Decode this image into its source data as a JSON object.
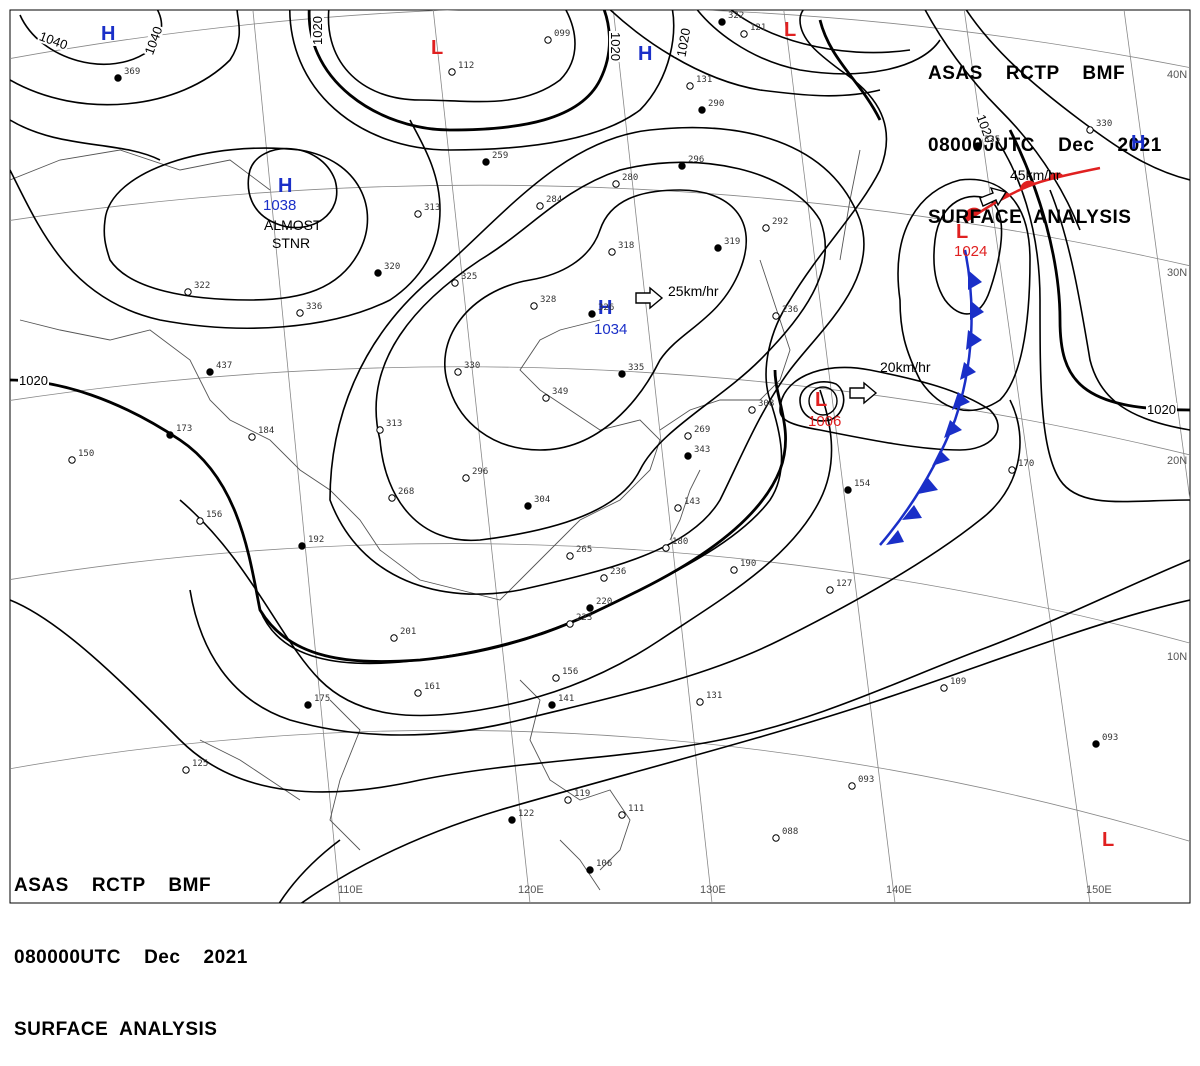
{
  "header": {
    "line1": "ASAS    RCTP    BMF",
    "line2": "080000UTC    Dec    2021",
    "line3": "SURFACE  ANALYSIS"
  },
  "footer": {
    "line1": "ASAS    RCTP    BMF",
    "line2": "080000UTC    Dec    2021",
    "line3": "SURFACE  ANALYSIS"
  },
  "systems": {
    "high_nw": {
      "symbol": "H"
    },
    "high_mongolia": {
      "symbol": "H",
      "pressure": "1038",
      "note1": "ALMOST",
      "note2": "STNR"
    },
    "high_china": {
      "symbol": "H",
      "pressure": "1034",
      "motion": "25km/hr"
    },
    "high_ne": {
      "symbol": "H"
    },
    "high_ne2": {
      "symbol": "H"
    },
    "low_north": {
      "symbol": "L"
    },
    "low_ne": {
      "symbol": "L"
    },
    "low_pacific": {
      "symbol": "L",
      "pressure": "1024",
      "motion": "45km/hr"
    },
    "low_east_china_sea": {
      "symbol": "L",
      "pressure": "1006",
      "motion": "20km/hr"
    },
    "low_se": {
      "symbol": "L"
    }
  },
  "isobar_labels": [
    "1040",
    "1040",
    "1020",
    "1020",
    "1020",
    "1020",
    "1020",
    "1020"
  ],
  "latitudes": [
    "40N",
    "30N",
    "20N",
    "10N"
  ],
  "longitudes": [
    "110E",
    "120E",
    "130E",
    "140E",
    "150E"
  ],
  "station_plots": [
    "369",
    "112",
    "099",
    "259",
    "318",
    "313",
    "296",
    "284",
    "280",
    "320",
    "325",
    "328",
    "326",
    "336",
    "322",
    "437",
    "330",
    "349",
    "335",
    "313",
    "184",
    "173",
    "150",
    "156",
    "192",
    "268",
    "296",
    "304",
    "265",
    "236",
    "220",
    "223",
    "201",
    "175",
    "161",
    "156",
    "141",
    "131",
    "125",
    "122",
    "119",
    "111",
    "106",
    "190",
    "127",
    "154",
    "170",
    "109",
    "093",
    "093",
    "088",
    "319",
    "292",
    "236",
    "335",
    "330",
    "131",
    "290",
    "180",
    "143",
    "343",
    "269",
    "308",
    "322",
    "121"
  ],
  "colors": {
    "high": "#1a2fc8",
    "low": "#e02020",
    "cold_front": "#1a2fc8",
    "warm_front": "#e02020",
    "isobar": "#000000",
    "graticule": "#888888",
    "coast": "#555555"
  }
}
